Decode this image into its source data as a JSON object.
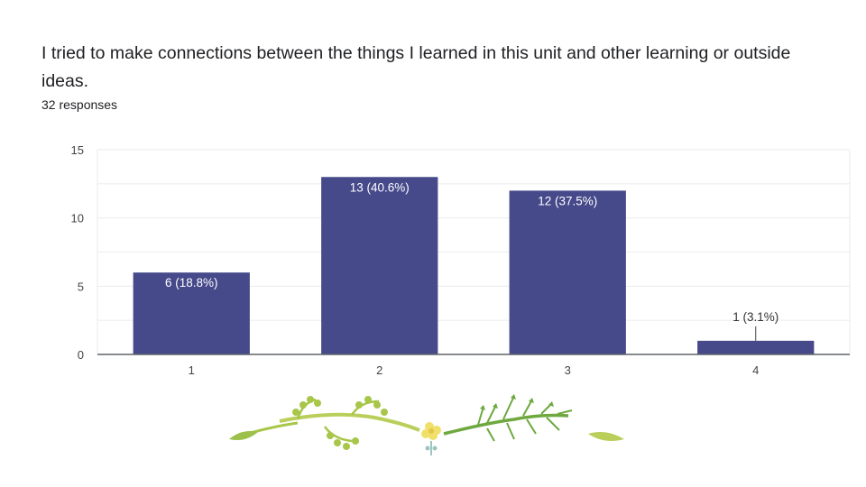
{
  "question": {
    "title": "I tried to make connections between the things I learned in this unit and other learning or outside ideas.",
    "response_count": "32 responses"
  },
  "colors": {
    "bar": "#46498a",
    "gridline": "#ebebeb",
    "axis": "#5f6368",
    "text": "#202124",
    "decoration_green": "#a8c64a",
    "decoration_dark_green": "#6ea83f",
    "decoration_flower": "#f0e06a"
  },
  "icons": {
    "decoration": "vine-flower-divider-icon"
  },
  "chart_data": {
    "type": "bar",
    "categories": [
      "1",
      "2",
      "3",
      "4"
    ],
    "values": [
      6,
      13,
      12,
      1
    ],
    "labels": [
      "6 (18.8%)",
      "13 (40.6%)",
      "12 (37.5%)",
      "1 (3.1%)"
    ],
    "yticks": [
      0,
      5,
      10,
      15
    ],
    "ylim": [
      0,
      15
    ],
    "grid": true,
    "title": "",
    "xlabel": "",
    "ylabel": ""
  }
}
